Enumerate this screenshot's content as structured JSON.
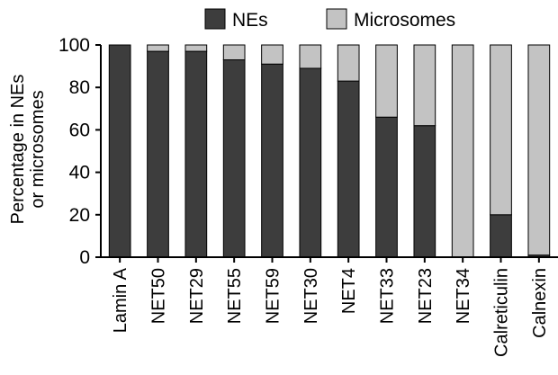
{
  "chart_data": {
    "type": "bar",
    "stacked": true,
    "ylabel_line1": "Percentage in NEs",
    "ylabel_line2": "or microsomes",
    "ylim": [
      0,
      100
    ],
    "yticks": [
      "0",
      "20",
      "40",
      "60",
      "80",
      "100"
    ],
    "categories": [
      "Lamin A",
      "NET50",
      "NET29",
      "NET55",
      "NET59",
      "NET30",
      "NET4",
      "NET33",
      "NET23",
      "NET34",
      "Calreticulin",
      "Calnexin"
    ],
    "series": [
      {
        "name": "NEs",
        "color": "#3d3d3d",
        "values": [
          100,
          97,
          97,
          93,
          91,
          89,
          83,
          66,
          62,
          0,
          20,
          1
        ]
      },
      {
        "name": "Microsomes",
        "color": "#c3c3c3",
        "values": [
          0,
          3,
          3,
          7,
          9,
          11,
          17,
          34,
          38,
          100,
          80,
          99
        ]
      }
    ],
    "legend_position": "top"
  }
}
